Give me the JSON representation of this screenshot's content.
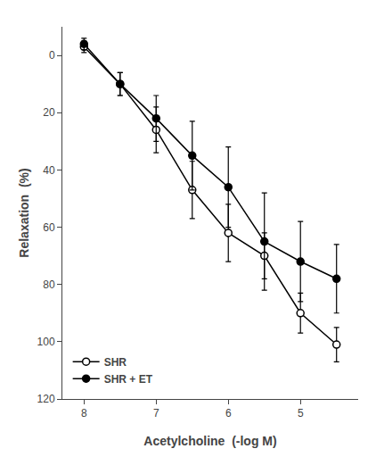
{
  "chart_data": {
    "type": "line",
    "xlabel": "Acetylcholine  (-log M)",
    "ylabel": "Relaxation  (%)",
    "x": [
      8,
      7.5,
      7,
      6.5,
      6,
      5.5,
      5,
      4.5
    ],
    "series": [
      {
        "name": "SHR",
        "color": "#000000",
        "marker": "open-circle",
        "line_style": "solid",
        "values": [
          -3,
          10,
          26,
          47,
          62,
          70,
          90,
          101
        ],
        "yerr": [
          2,
          4,
          8,
          10,
          10,
          8,
          7,
          6
        ]
      },
      {
        "name": "SHR + ET",
        "color": "#000000",
        "marker": "circle",
        "line_style": "solid",
        "values": [
          -4,
          10,
          22,
          35,
          46,
          65,
          72,
          78
        ],
        "yerr": [
          2,
          4,
          8,
          12,
          14,
          17,
          14,
          12
        ]
      }
    ],
    "xlim": [
      8.3,
      4.2
    ],
    "ylim": [
      120,
      -10
    ],
    "xticks": [
      8,
      7,
      6,
      5
    ],
    "yticks": [
      0,
      20,
      40,
      60,
      80,
      100,
      120
    ],
    "grid": false,
    "legend": "lower left"
  }
}
